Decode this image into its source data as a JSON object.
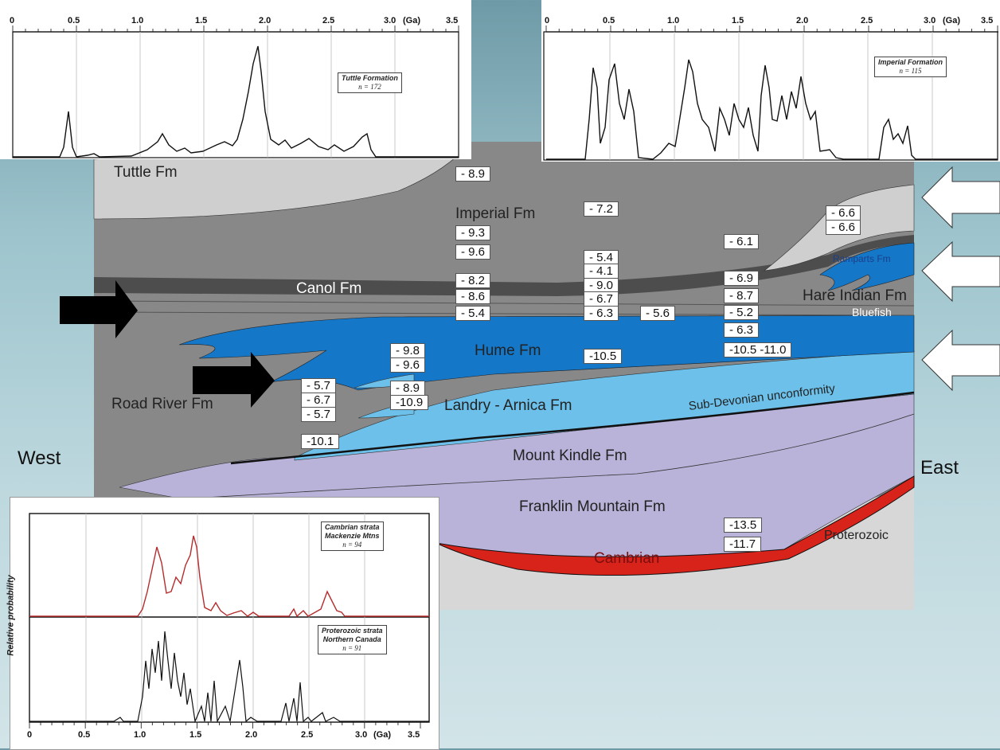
{
  "colors": {
    "road_river": "#888888",
    "tuttle": "#cfcfcf",
    "hume": "#1577c8",
    "landry": "#6cc0ea",
    "mount_kindle": "#b9b2d9",
    "cambrian": "#d8231b",
    "proterozoic": "#d7d7d7",
    "canol": "#4d4d4d",
    "arrow_black": "#000000",
    "arrow_white": "#ffffff",
    "red_curve": "#b52c2c"
  },
  "formations": {
    "tuttle": "Tuttle Fm",
    "imperial": "Imperial Fm",
    "canol": "Canol Fm",
    "hare_indian": "Hare Indian Fm",
    "ramparts": "Ramparts Fm",
    "bluefish": "Bluefish",
    "hume": "Hume Fm",
    "road_river": "Road River Fm",
    "landry": "Landry - Arnica Fm",
    "unconformity": "Sub-Devonian unconformity",
    "mount_kindle": "Mount Kindle Fm",
    "franklin": "Franklin Mountain Fm",
    "cambrian": "Cambrian",
    "proterozoic": "Proterozoic",
    "west": "West",
    "east": "East"
  },
  "values": {
    "v1": "- 8.9",
    "v2": "- 7.2",
    "v3": "- 9.3",
    "v4": "- 9.6",
    "v5": "- 8.2",
    "v6": "- 8.6",
    "v7": "- 5.4",
    "v8": "- 5.4",
    "v9": "- 4.1",
    "v10": "- 9.0",
    "v11": "- 6.7",
    "v12": "- 6.3",
    "v13": "- 5.6",
    "v14": "- 6.6",
    "v15": "- 6.6",
    "v16": "- 6.1",
    "v17": "- 6.9",
    "v18": "- 8.7",
    "v19": "- 5.2",
    "v20": "- 6.3",
    "v21": "-10.5 -11.0",
    "v22": "- 9.8",
    "v23": "- 9.6",
    "v24": "-10.5",
    "v25": "- 8.9",
    "v26": "-10.9",
    "v27": "- 5.7",
    "v28": "- 6.7",
    "v29": "- 5.7",
    "v30": "-10.1",
    "v31": "-13.5",
    "v32": "-11.7"
  },
  "axis": {
    "ticks": [
      "0",
      "0.5",
      "1.0",
      "1.5",
      "2.0",
      "2.5",
      "3.0",
      "3.5"
    ],
    "unit": "(Ga)",
    "ylabel": "Relative probability"
  },
  "legends": {
    "tuttle": {
      "name": "Tuttle Formation",
      "n": "n = 172"
    },
    "imperial": {
      "name": "Imperial Formation",
      "n": "n = 115"
    },
    "cambrian": {
      "line1": "Cambrian strata",
      "line2": "Mackenzie Mtns",
      "n": "n = 94"
    },
    "proterozoic": {
      "line1": "Proterozoic strata",
      "line2": "Northern Canada",
      "n": "n = 91"
    }
  }
}
